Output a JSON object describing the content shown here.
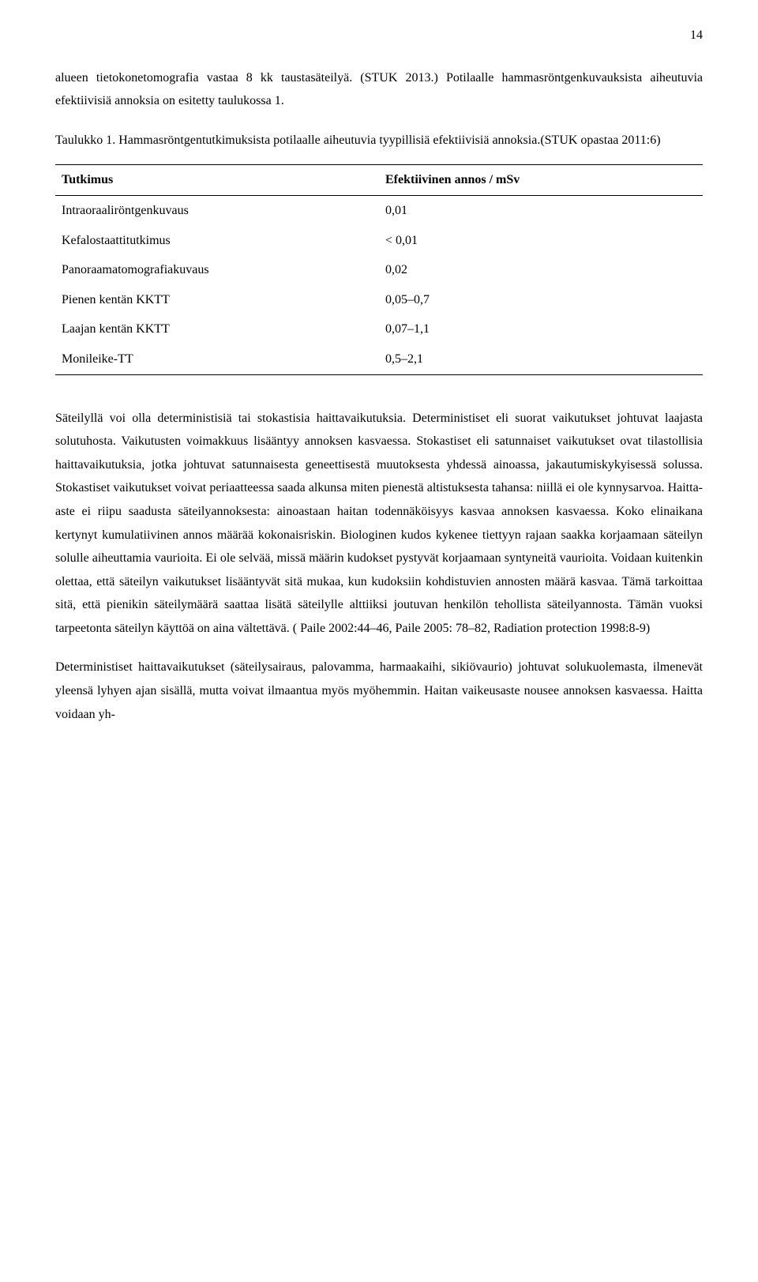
{
  "page_number": "14",
  "intro_paragraph": "alueen tietokonetomografia vastaa 8 kk taustasäteilyä. (STUK 2013.) Potilaalle hammasröntgenkuvauksista aiheutuvia efektiivisiä annoksia on esitetty taulukossa 1.",
  "table_caption": "Taulukko 1. Hammasröntgentutkimuksista potilaalle aiheutuvia tyypillisiä efektiivisiä annoksia.(STUK opastaa 2011:6)",
  "table": {
    "header": {
      "col1": "Tutkimus",
      "col2": "Efektiivinen annos / mSv"
    },
    "rows": [
      {
        "label": "Intraoraaliröntgenkuvaus",
        "value": "0,01"
      },
      {
        "label": "Kefalostaattitutkimus",
        "value": "< 0,01"
      },
      {
        "label": "Panoraamatomografiakuvaus",
        "value": "0,02"
      },
      {
        "label": "Pienen kentän KKTT",
        "value": "0,05–0,7"
      },
      {
        "label": "Laajan kentän KKTT",
        "value": "0,07–1,1"
      },
      {
        "label": "Monileike-TT",
        "value": "0,5–2,1"
      }
    ]
  },
  "body_paragraph_1": "Säteilyllä voi olla deterministisiä tai stokastisia haittavaikutuksia. Deterministiset eli suorat vaikutukset johtuvat laajasta solutuhosta. Vaikutusten voimakkuus lisääntyy annoksen kasvaessa. Stokastiset eli satunnaiset vaikutukset ovat tilastollisia haittavaikutuksia, jotka johtuvat satunnaisesta geneettisestä muutoksesta yhdessä ainoassa, jakautumiskykyisessä solussa. Stokastiset vaikutukset voivat periaatteessa saada alkunsa miten pienestä altistuksesta tahansa: niillä ei ole kynnysarvoa. Haitta-aste ei riipu saadusta säteilyannoksesta: ainoastaan haitan todennäköisyys kasvaa annoksen kasvaessa. Koko elinaikana kertynyt kumulatiivinen annos määrää kokonaisriskin. Biologinen kudos kykenee tiettyyn rajaan saakka korjaamaan säteilyn solulle aiheuttamia vaurioita. Ei ole selvää, missä määrin kudokset pystyvät korjaamaan syntyneitä vaurioita. Voidaan kuitenkin olettaa, että säteilyn vaikutukset lisääntyvät sitä mukaa, kun kudoksiin kohdistuvien annosten määrä kasvaa. Tämä tarkoittaa sitä, että pienikin säteilymäärä saattaa lisätä säteilylle alttiiksi joutuvan henkilön tehollista säteilyannosta. Tämän vuoksi tarpeetonta säteilyn käyttöä on aina vältettävä. ( Paile 2002:44–46, Paile 2005: 78–82, Radiation protection 1998:8-9)",
  "body_paragraph_2": "Deterministiset haittavaikutukset (säteilysairaus, palovamma, harmaakaihi, sikiövaurio) johtuvat solukuolemasta, ilmenevät yleensä lyhyen ajan sisällä, mutta voivat ilmaantua myös myöhemmin. Haitan vaikeusaste nousee annoksen kasvaessa. Haitta voidaan yh-"
}
